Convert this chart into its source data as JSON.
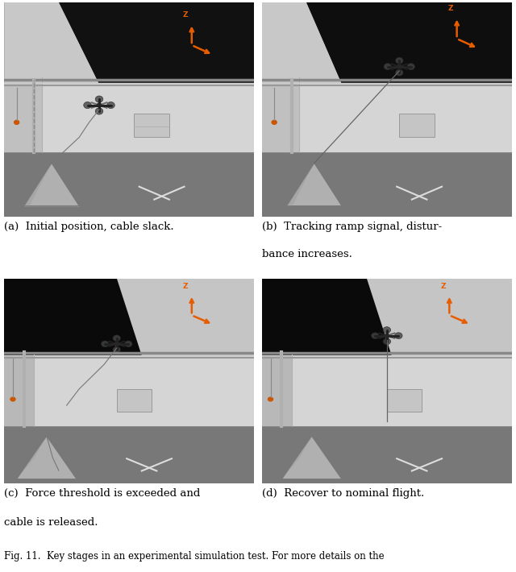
{
  "figure_width": 6.4,
  "figure_height": 7.1,
  "dpi": 100,
  "background_color": "#ffffff",
  "panels": [
    {
      "id": "a",
      "label": "(a)",
      "caption_line1": "(a)  Initial position, cable slack.",
      "caption_line2": null
    },
    {
      "id": "b",
      "label": "(b)",
      "caption_line1": "(b)  Tracking ramp signal, distur-",
      "caption_line2": "bance increases."
    },
    {
      "id": "c",
      "label": "(c)",
      "caption_line1": "(c)  Force threshold is exceeded and",
      "caption_line2": "cable is released."
    },
    {
      "id": "d",
      "label": "(d)",
      "caption_line1": "(d)  Recover to nominal flight.",
      "caption_line2": null
    }
  ],
  "caption_fontsize": 9.5,
  "caption_font": "DejaVu Serif",
  "footer_text": "Fig. 11.  Key stages in an experimental simulation test. For more details on the",
  "footer_fontsize": 8.5,
  "arrow_color": "#E85C00",
  "colors": {
    "ceiling_dark": "#1a1a1a",
    "wall_light": "#d8d8d8",
    "wall_mid": "#b8b8b8",
    "floor_dark": "#666666",
    "floor_mid": "#888888",
    "pipe_h": "#aaaaaa",
    "pipe_v": "#999999",
    "drone_body": "#2a2a2a",
    "drone_arm": "#333333",
    "drone_rotor": "#555555",
    "cable": "#666666",
    "object_face": "#aaaaaa",
    "object_edge": "#777777",
    "floor_mark": "#cccccc",
    "box_face": "#c0c0c0",
    "box_edge": "#999999"
  }
}
